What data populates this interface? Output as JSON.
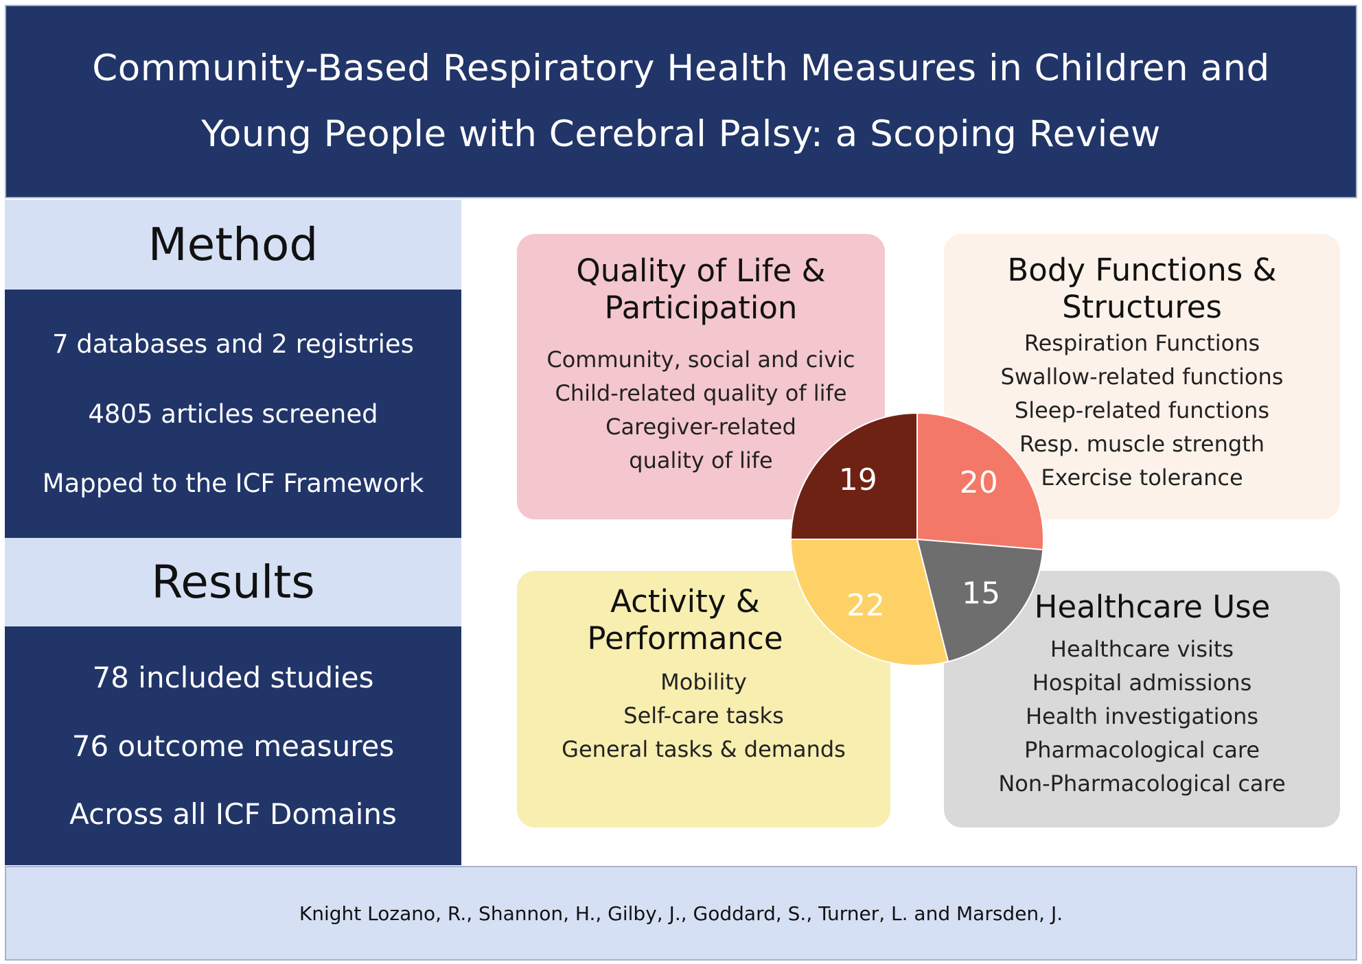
{
  "title": {
    "line1": "Community-Based Respiratory Health Measures in Children and",
    "line2": "Young People with Cerebral Palsy: a Scoping Review"
  },
  "method": {
    "heading": "Method",
    "items": [
      "7 databases and 2 registries",
      "4805 articles screened",
      "Mapped to the ICF Framework"
    ]
  },
  "results": {
    "heading": "Results",
    "items": [
      "78 included studies",
      "76 outcome measures",
      "Across all ICF Domains"
    ]
  },
  "quadrants": {
    "quality_of_life": {
      "title_line1": "Quality of Life &",
      "title_line2": "Participation",
      "items": [
        "Community, social and civic",
        "Child-related quality of life",
        "Caregiver-related",
        "quality of life"
      ],
      "color": "#f4c6ce"
    },
    "body_functions": {
      "title_line1": "Body Functions &",
      "title_line2": "Structures",
      "items": [
        "Respiration Functions",
        "Swallow-related functions",
        "Sleep-related functions",
        "Resp. muscle strength",
        "Exercise tolerance"
      ],
      "color": "#fdf2e9"
    },
    "activity": {
      "title_line1": "Activity &",
      "title_line2": "Performance",
      "items": [
        "Mobility",
        "Self-care tasks",
        "General tasks & demands"
      ],
      "color": "#f7eeb0"
    },
    "healthcare": {
      "title": "Healthcare Use",
      "items": [
        "Healthcare visits",
        "Hospital admissions",
        "Health investigations",
        "Pharmacological care",
        "Non-Pharmacological care"
      ],
      "color": "#d9d9d9"
    }
  },
  "chart_data": {
    "type": "pie",
    "slices": [
      {
        "value": 20,
        "color": "#f47867"
      },
      {
        "value": 15,
        "color": "#6e6e6e"
      },
      {
        "value": 22,
        "color": "#fdd166"
      },
      {
        "value": 19,
        "color": "#6e2214"
      }
    ],
    "start_angle_deg": 0,
    "direction": "clockwise"
  },
  "footer": {
    "citation": "Knight Lozano, R., Shannon, H., Gilby, J., Goddard, S., Turner, L. and Marsden, J."
  }
}
